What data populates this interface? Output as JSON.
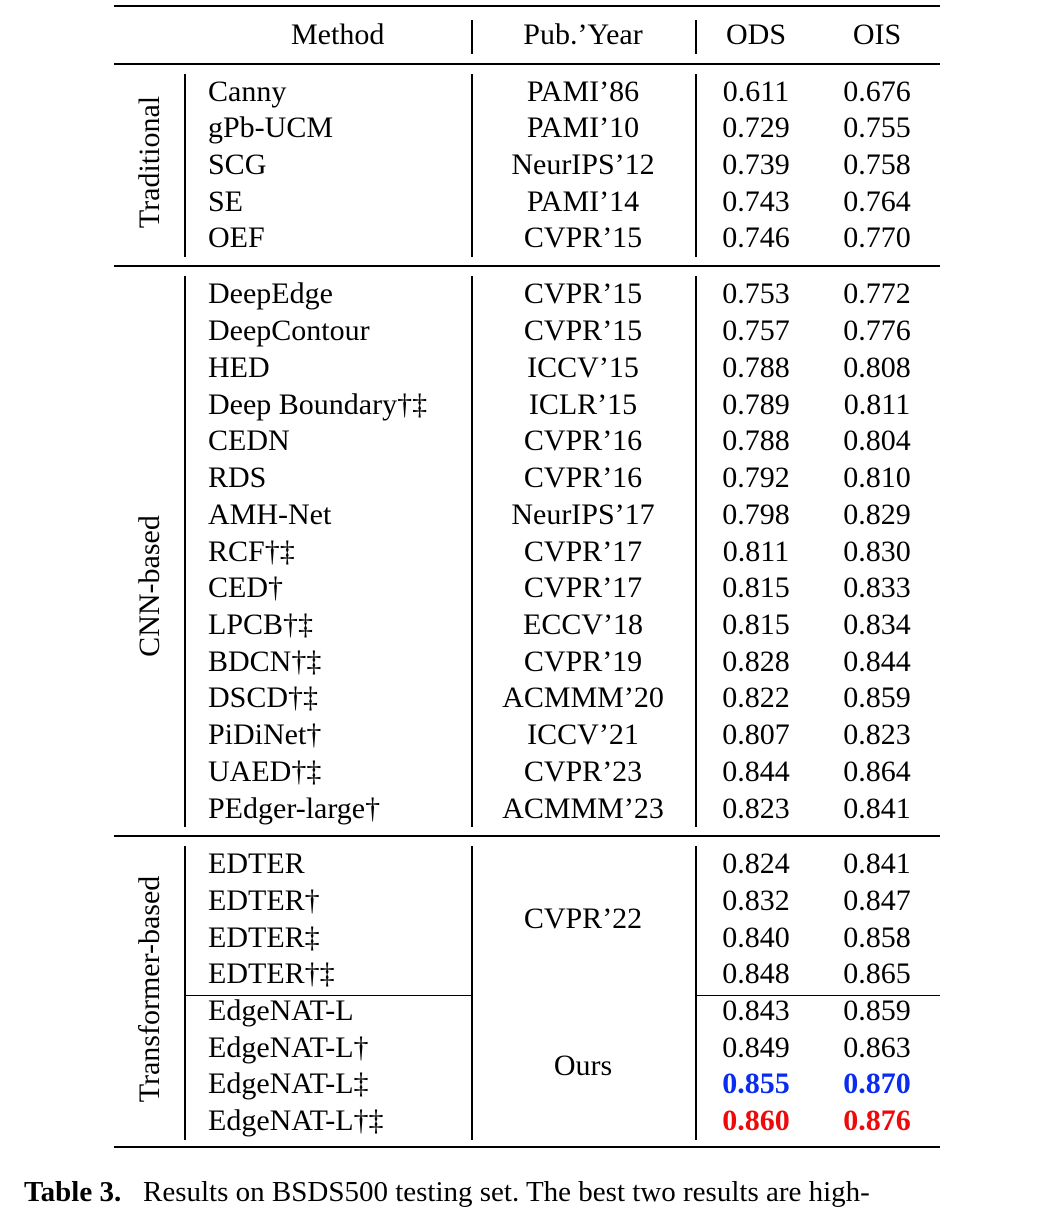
{
  "header": {
    "method": "Method",
    "pub_year": "Pub.’Year",
    "ods": "ODS",
    "ois": "OIS"
  },
  "groups": {
    "traditional": "Traditional",
    "cnn": "CNN-based",
    "transformer": "Transformer-based"
  },
  "rows": [
    {
      "method": "Canny",
      "pub": "PAMI’86",
      "ods": "0.611",
      "ois": "0.676"
    },
    {
      "method": "gPb-UCM",
      "pub": "PAMI’10",
      "ods": "0.729",
      "ois": "0.755"
    },
    {
      "method": "SCG",
      "pub": "NeurIPS’12",
      "ods": "0.739",
      "ois": "0.758"
    },
    {
      "method": "SE",
      "pub": "PAMI’14",
      "ods": "0.743",
      "ois": "0.764"
    },
    {
      "method": "OEF",
      "pub": "CVPR’15",
      "ods": "0.746",
      "ois": "0.770"
    },
    {
      "method": "DeepEdge",
      "pub": "CVPR’15",
      "ods": "0.753",
      "ois": "0.772"
    },
    {
      "method": "DeepContour",
      "pub": "CVPR’15",
      "ods": "0.757",
      "ois": "0.776"
    },
    {
      "method": "HED",
      "pub": "ICCV’15",
      "ods": "0.788",
      "ois": "0.808"
    },
    {
      "method": "Deep Boundary†‡",
      "pub": "ICLR’15",
      "ods": "0.789",
      "ois": "0.811"
    },
    {
      "method": "CEDN",
      "pub": "CVPR’16",
      "ods": "0.788",
      "ois": "0.804"
    },
    {
      "method": "RDS",
      "pub": "CVPR’16",
      "ods": "0.792",
      "ois": "0.810"
    },
    {
      "method": "AMH-Net",
      "pub": "NeurIPS’17",
      "ods": "0.798",
      "ois": "0.829"
    },
    {
      "method": "RCF†‡",
      "pub": "CVPR’17",
      "ods": "0.811",
      "ois": "0.830"
    },
    {
      "method": "CED†",
      "pub": "CVPR’17",
      "ods": "0.815",
      "ois": "0.833"
    },
    {
      "method": "LPCB†‡",
      "pub": "ECCV’18",
      "ods": "0.815",
      "ois": "0.834"
    },
    {
      "method": "BDCN†‡",
      "pub": "CVPR’19",
      "ods": "0.828",
      "ois": "0.844"
    },
    {
      "method": "DSCD†‡",
      "pub": "ACMMM’20",
      "ods": "0.822",
      "ois": "0.859"
    },
    {
      "method": "PiDiNet†",
      "pub": "ICCV’21",
      "ods": "0.807",
      "ois": "0.823"
    },
    {
      "method": "UAED†‡",
      "pub": "CVPR’23",
      "ods": "0.844",
      "ois": "0.864"
    },
    {
      "method": "PEdger-large†",
      "pub": "ACMMM’23",
      "ods": "0.823",
      "ois": "0.841"
    },
    {
      "method": "EDTER",
      "ods": "0.824",
      "ois": "0.841"
    },
    {
      "method": "EDTER†",
      "ods": "0.832",
      "ois": "0.847"
    },
    {
      "method": "EDTER‡",
      "ods": "0.840",
      "ois": "0.858"
    },
    {
      "method": "EDTER†‡",
      "ods": "0.848",
      "ois": "0.865"
    },
    {
      "method": "EdgeNAT-L",
      "ods": "0.843",
      "ois": "0.859"
    },
    {
      "method": "EdgeNAT-L†",
      "ods": "0.849",
      "ois": "0.863"
    },
    {
      "method": "EdgeNAT-L‡",
      "ods": "0.855",
      "ois": "0.870"
    },
    {
      "method": "EdgeNAT-L†‡",
      "ods": "0.860",
      "ois": "0.876"
    }
  ],
  "merged": {
    "edter_pub": "CVPR’22",
    "ours_pub": "Ours"
  },
  "highlight_colors": {
    "best": "#ee0a0a",
    "second": "#0a2cf0"
  },
  "caption": {
    "label": "Table 3.",
    "text": "Results on BSDS500 testing set. The best two results are high-"
  }
}
